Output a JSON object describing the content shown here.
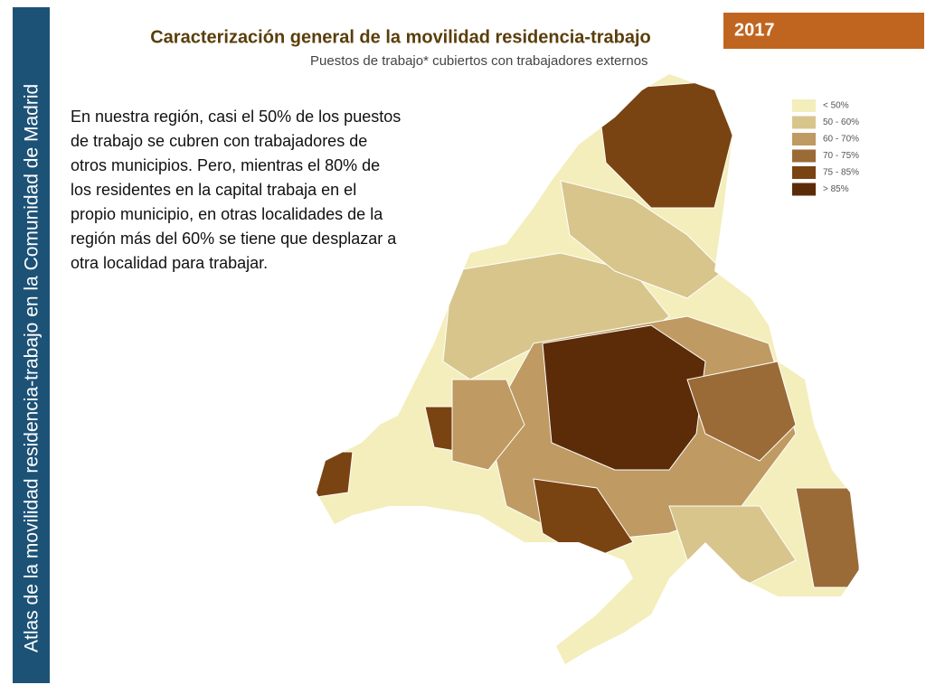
{
  "sidebar": {
    "text": "Atlas de la movilidad residencia-trabajo en la Comunidad de Madrid"
  },
  "header": {
    "year": "2017",
    "title": "Caracterización general de la movilidad residencia-trabajo"
  },
  "map": {
    "subtitle": "Puestos de trabajo* cubiertos con trabajadores externos",
    "legend": [
      {
        "label": "< 50%",
        "color": "#f3eebb"
      },
      {
        "label": "50 - 60%",
        "color": "#d8c58c"
      },
      {
        "label": "60 - 70%",
        "color": "#bf9a62"
      },
      {
        "label": "70 - 75%",
        "color": "#9a6b37"
      },
      {
        "label": "75 - 85%",
        "color": "#7a4312"
      },
      {
        "label": "> 85%",
        "color": "#5c2c09"
      }
    ]
  },
  "body": {
    "lines": [
      "En nuestra región, casi el 50% de los puestos",
      "de trabajo se cubren con trabajadores de",
      "otros municipios. Pero, mientras el 80% de",
      "los residentes en la capital trabaja en el",
      "propio municipio, en otras localidades de la",
      "región más del 60% se tiene que desplazar a",
      "otra localidad para trabajar."
    ]
  }
}
